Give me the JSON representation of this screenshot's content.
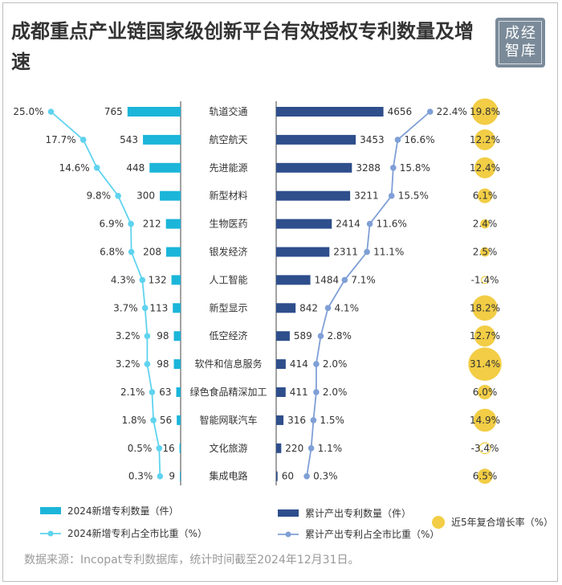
{
  "title": "成都重点产业链国家级创新平台有效授权专利数量及增速",
  "logo": {
    "chars": [
      "成",
      "经",
      "智",
      "库"
    ]
  },
  "source": "数据来源：Incopat专利数据库，统计时间截至2024年12月31日。",
  "colors": {
    "new_bar": "#1bb5d9",
    "new_line": "#5fd3ef",
    "cum_bar": "#2e4e8c",
    "cum_line": "#7f9fd6",
    "bubble": "#f2cd45"
  },
  "legend": {
    "new_count": "2024新增专利数量（件）",
    "new_share": "2024新增专利占全市比重（%）",
    "cum_count": "累计产出专利数量（件）",
    "cum_share": "累计产出专利占全市比重（%）",
    "cagr": "近5年复合增长率（%）"
  },
  "chart_data": {
    "type": "bar",
    "categories": [
      "轨道交通",
      "航空航天",
      "先进能源",
      "新型材料",
      "生物医药",
      "银发经济",
      "人工智能",
      "新型显示",
      "低空经济",
      "软件和信息服务",
      "绿色食品精深加工",
      "智能网联汽车",
      "文化旅游",
      "集成电路"
    ],
    "series": [
      {
        "name": "2024新增专利数量（件）",
        "kind": "bar",
        "values": [
          765,
          543,
          448,
          300,
          212,
          208,
          132,
          113,
          98,
          98,
          63,
          56,
          16,
          9
        ]
      },
      {
        "name": "2024新增专利占全市比重（%）",
        "kind": "line",
        "values": [
          25.0,
          17.7,
          14.6,
          9.8,
          6.9,
          6.8,
          4.3,
          3.7,
          3.2,
          3.2,
          2.1,
          1.8,
          0.5,
          0.3
        ],
        "labels": [
          "25.0%",
          "17.7%",
          "14.6%",
          "9.8%",
          "6.9%",
          "6.8%",
          "4.3%",
          "3.7%",
          "3.2%",
          "3.2%",
          "2.1%",
          "1.8%",
          "0.5%",
          "0.3%"
        ]
      },
      {
        "name": "累计产出专利数量（件）",
        "kind": "bar",
        "values": [
          4656,
          3453,
          3288,
          3211,
          2414,
          2311,
          1484,
          842,
          589,
          414,
          411,
          316,
          220,
          60
        ]
      },
      {
        "name": "累计产出专利占全市比重（%）",
        "kind": "line",
        "values": [
          22.4,
          16.6,
          15.8,
          15.5,
          11.6,
          11.1,
          7.1,
          4.1,
          2.8,
          2.0,
          2.0,
          1.5,
          1.1,
          0.3
        ],
        "labels": [
          "22.4%",
          "16.6%",
          "15.8%",
          "15.5%",
          "11.6%",
          "11.1%",
          "7.1%",
          "4.1%",
          "2.8%",
          "2.0%",
          "2.0%",
          "1.5%",
          "1.1%",
          "0.3%"
        ]
      },
      {
        "name": "近5年复合增长率（%）",
        "kind": "bubble",
        "values": [
          19.8,
          12.2,
          12.4,
          6.1,
          2.4,
          2.5,
          -1.4,
          18.2,
          12.7,
          31.4,
          6.0,
          14.9,
          -3.4,
          6.5
        ],
        "labels": [
          "19.8%",
          "12.2%",
          "12.4%",
          "6.1%",
          "2.4%",
          "2.5%",
          "-1.4%",
          "18.2%",
          "12.7%",
          "31.4%",
          "6.0%",
          "14.9%",
          "-3.4%",
          "6.5%"
        ]
      }
    ],
    "new_count_labels": [
      "765",
      "543",
      "448",
      "300",
      "212",
      "208",
      "132",
      "113",
      "98",
      "98",
      "63",
      "56",
      "16",
      "9"
    ],
    "cum_count_labels": [
      "4656",
      "3453",
      "3288",
      "3211",
      "2414",
      "2311",
      "1484",
      "842",
      "589",
      "414",
      "411",
      "316",
      "220",
      "60"
    ],
    "grid": false,
    "legend_position": "bottom"
  }
}
